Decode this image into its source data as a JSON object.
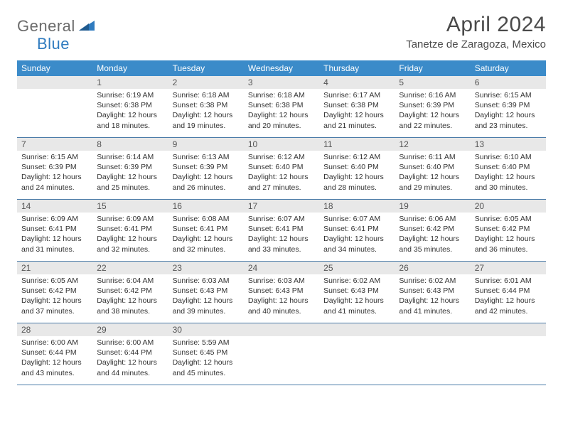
{
  "brand": {
    "part1": "General",
    "part2": "Blue"
  },
  "title": "April 2024",
  "location": "Tanetze de Zaragoza, Mexico",
  "colors": {
    "header_bg": "#3b8bc9",
    "header_text": "#ffffff",
    "daynum_bg": "#e8e8e8",
    "row_border": "#4a7ba8",
    "brand_gray": "#6b6b6b",
    "brand_blue": "#2f7bbf",
    "text": "#333333",
    "title_color": "#4a4a4a",
    "page_bg": "#ffffff"
  },
  "layout": {
    "columns": 7,
    "rows": 5
  },
  "weekdays": [
    "Sunday",
    "Monday",
    "Tuesday",
    "Wednesday",
    "Thursday",
    "Friday",
    "Saturday"
  ],
  "weeks": [
    [
      null,
      {
        "n": "1",
        "sr": "6:19 AM",
        "ss": "6:38 PM",
        "dl": "12 hours and 18 minutes."
      },
      {
        "n": "2",
        "sr": "6:18 AM",
        "ss": "6:38 PM",
        "dl": "12 hours and 19 minutes."
      },
      {
        "n": "3",
        "sr": "6:18 AM",
        "ss": "6:38 PM",
        "dl": "12 hours and 20 minutes."
      },
      {
        "n": "4",
        "sr": "6:17 AM",
        "ss": "6:38 PM",
        "dl": "12 hours and 21 minutes."
      },
      {
        "n": "5",
        "sr": "6:16 AM",
        "ss": "6:39 PM",
        "dl": "12 hours and 22 minutes."
      },
      {
        "n": "6",
        "sr": "6:15 AM",
        "ss": "6:39 PM",
        "dl": "12 hours and 23 minutes."
      }
    ],
    [
      {
        "n": "7",
        "sr": "6:15 AM",
        "ss": "6:39 PM",
        "dl": "12 hours and 24 minutes."
      },
      {
        "n": "8",
        "sr": "6:14 AM",
        "ss": "6:39 PM",
        "dl": "12 hours and 25 minutes."
      },
      {
        "n": "9",
        "sr": "6:13 AM",
        "ss": "6:39 PM",
        "dl": "12 hours and 26 minutes."
      },
      {
        "n": "10",
        "sr": "6:12 AM",
        "ss": "6:40 PM",
        "dl": "12 hours and 27 minutes."
      },
      {
        "n": "11",
        "sr": "6:12 AM",
        "ss": "6:40 PM",
        "dl": "12 hours and 28 minutes."
      },
      {
        "n": "12",
        "sr": "6:11 AM",
        "ss": "6:40 PM",
        "dl": "12 hours and 29 minutes."
      },
      {
        "n": "13",
        "sr": "6:10 AM",
        "ss": "6:40 PM",
        "dl": "12 hours and 30 minutes."
      }
    ],
    [
      {
        "n": "14",
        "sr": "6:09 AM",
        "ss": "6:41 PM",
        "dl": "12 hours and 31 minutes."
      },
      {
        "n": "15",
        "sr": "6:09 AM",
        "ss": "6:41 PM",
        "dl": "12 hours and 32 minutes."
      },
      {
        "n": "16",
        "sr": "6:08 AM",
        "ss": "6:41 PM",
        "dl": "12 hours and 32 minutes."
      },
      {
        "n": "17",
        "sr": "6:07 AM",
        "ss": "6:41 PM",
        "dl": "12 hours and 33 minutes."
      },
      {
        "n": "18",
        "sr": "6:07 AM",
        "ss": "6:41 PM",
        "dl": "12 hours and 34 minutes."
      },
      {
        "n": "19",
        "sr": "6:06 AM",
        "ss": "6:42 PM",
        "dl": "12 hours and 35 minutes."
      },
      {
        "n": "20",
        "sr": "6:05 AM",
        "ss": "6:42 PM",
        "dl": "12 hours and 36 minutes."
      }
    ],
    [
      {
        "n": "21",
        "sr": "6:05 AM",
        "ss": "6:42 PM",
        "dl": "12 hours and 37 minutes."
      },
      {
        "n": "22",
        "sr": "6:04 AM",
        "ss": "6:42 PM",
        "dl": "12 hours and 38 minutes."
      },
      {
        "n": "23",
        "sr": "6:03 AM",
        "ss": "6:43 PM",
        "dl": "12 hours and 39 minutes."
      },
      {
        "n": "24",
        "sr": "6:03 AM",
        "ss": "6:43 PM",
        "dl": "12 hours and 40 minutes."
      },
      {
        "n": "25",
        "sr": "6:02 AM",
        "ss": "6:43 PM",
        "dl": "12 hours and 41 minutes."
      },
      {
        "n": "26",
        "sr": "6:02 AM",
        "ss": "6:43 PM",
        "dl": "12 hours and 41 minutes."
      },
      {
        "n": "27",
        "sr": "6:01 AM",
        "ss": "6:44 PM",
        "dl": "12 hours and 42 minutes."
      }
    ],
    [
      {
        "n": "28",
        "sr": "6:00 AM",
        "ss": "6:44 PM",
        "dl": "12 hours and 43 minutes."
      },
      {
        "n": "29",
        "sr": "6:00 AM",
        "ss": "6:44 PM",
        "dl": "12 hours and 44 minutes."
      },
      {
        "n": "30",
        "sr": "5:59 AM",
        "ss": "6:45 PM",
        "dl": "12 hours and 45 minutes."
      },
      null,
      null,
      null,
      null
    ]
  ],
  "labels": {
    "sunrise": "Sunrise:",
    "sunset": "Sunset:",
    "daylight": "Daylight:"
  },
  "typography": {
    "title_fontsize": 30,
    "location_fontsize": 15,
    "weekday_fontsize": 12,
    "daynum_fontsize": 12,
    "detail_fontsize": 10.5
  }
}
